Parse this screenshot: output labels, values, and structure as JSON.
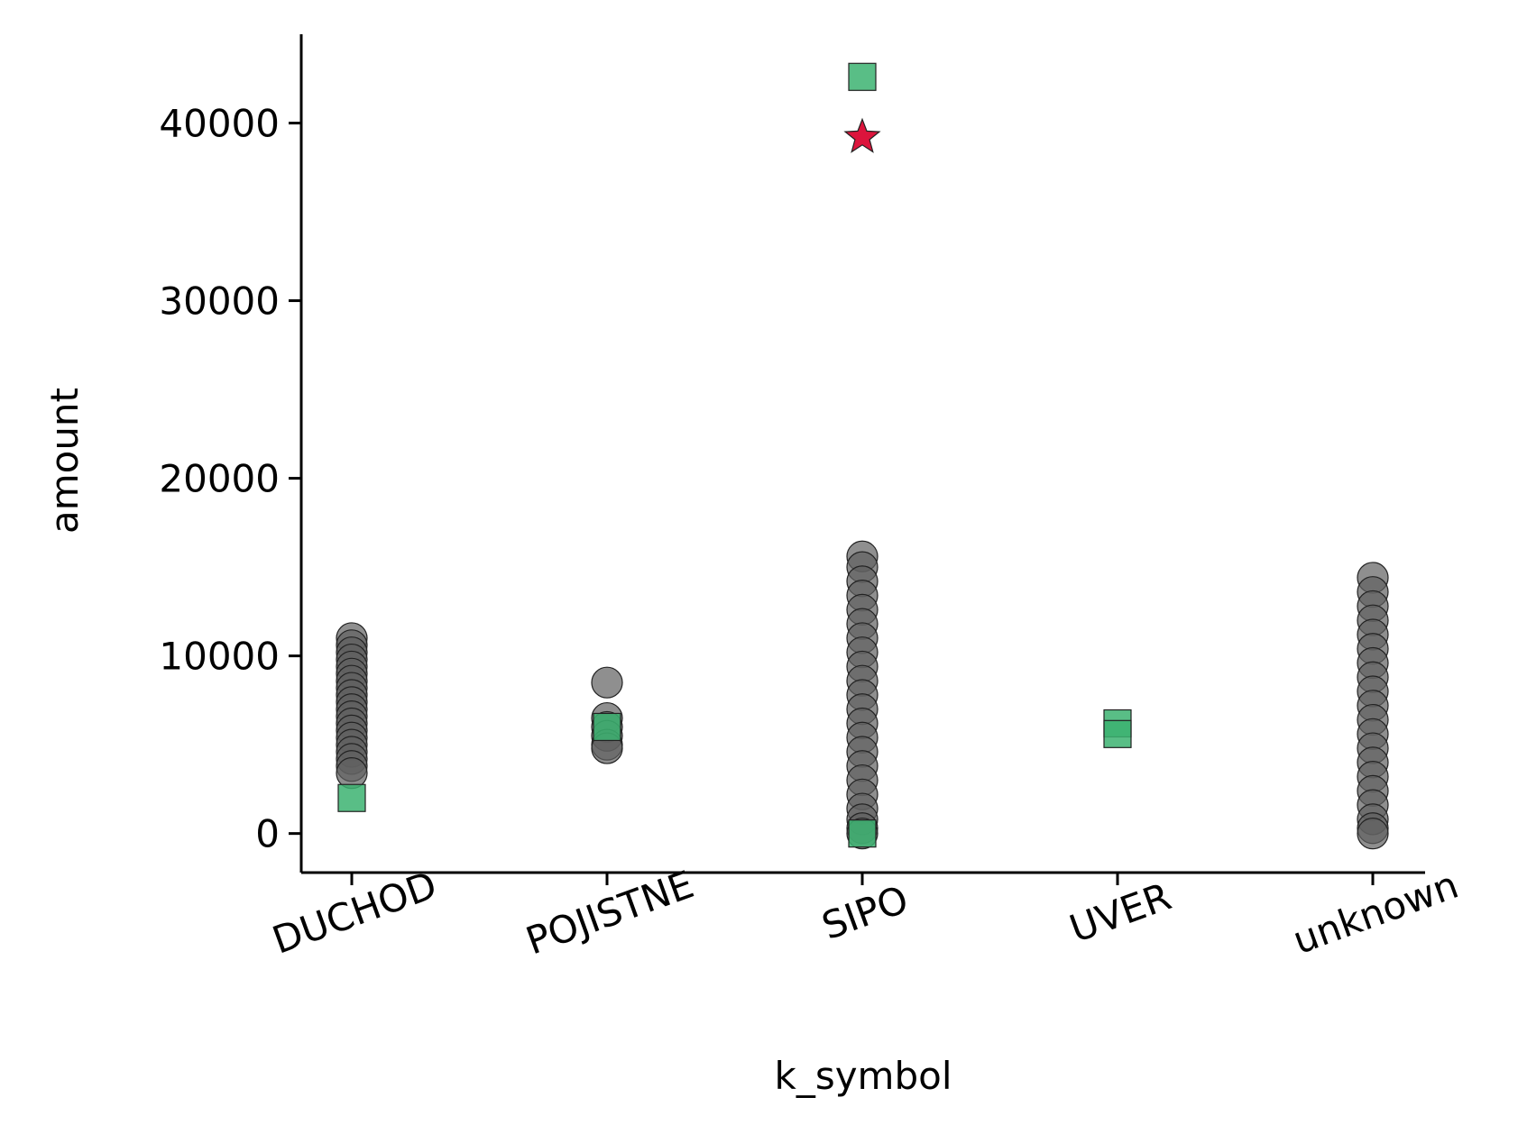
{
  "chart_data": {
    "type": "scatter",
    "title": "",
    "xlabel": "k_symbol",
    "ylabel": "amount",
    "categories": [
      "DUCHOD",
      "POJISTNE",
      "SIPO",
      "UVER",
      "unknown"
    ],
    "ylim": [
      -2200,
      45000
    ],
    "yticks": [
      0,
      10000,
      20000,
      30000,
      40000
    ],
    "grid": false,
    "legend": "none",
    "colors": {
      "circle_fill": "#5f5f5f",
      "square_fill": "#3cb371",
      "star_fill": "#dc143c",
      "edge": "#222222"
    },
    "series": [
      {
        "marker": "circle",
        "points": [
          {
            "x": "DUCHOD",
            "y": 11000
          },
          {
            "x": "DUCHOD",
            "y": 10600
          },
          {
            "x": "DUCHOD",
            "y": 10200
          },
          {
            "x": "DUCHOD",
            "y": 9800
          },
          {
            "x": "DUCHOD",
            "y": 9400
          },
          {
            "x": "DUCHOD",
            "y": 9000
          },
          {
            "x": "DUCHOD",
            "y": 8600
          },
          {
            "x": "DUCHOD",
            "y": 8200
          },
          {
            "x": "DUCHOD",
            "y": 7800
          },
          {
            "x": "DUCHOD",
            "y": 7400
          },
          {
            "x": "DUCHOD",
            "y": 7000
          },
          {
            "x": "DUCHOD",
            "y": 6600
          },
          {
            "x": "DUCHOD",
            "y": 6200
          },
          {
            "x": "DUCHOD",
            "y": 5800
          },
          {
            "x": "DUCHOD",
            "y": 5400
          },
          {
            "x": "DUCHOD",
            "y": 5000
          },
          {
            "x": "DUCHOD",
            "y": 4600
          },
          {
            "x": "DUCHOD",
            "y": 4200
          },
          {
            "x": "DUCHOD",
            "y": 3800
          },
          {
            "x": "DUCHOD",
            "y": 3400
          },
          {
            "x": "POJISTNE",
            "y": 8500
          },
          {
            "x": "POJISTNE",
            "y": 6500
          },
          {
            "x": "POJISTNE",
            "y": 6000
          },
          {
            "x": "POJISTNE",
            "y": 5500
          },
          {
            "x": "POJISTNE",
            "y": 5000
          },
          {
            "x": "POJISTNE",
            "y": 4800
          },
          {
            "x": "SIPO",
            "y": 15600
          },
          {
            "x": "SIPO",
            "y": 15000
          },
          {
            "x": "SIPO",
            "y": 14200
          },
          {
            "x": "SIPO",
            "y": 13400
          },
          {
            "x": "SIPO",
            "y": 12600
          },
          {
            "x": "SIPO",
            "y": 11800
          },
          {
            "x": "SIPO",
            "y": 11000
          },
          {
            "x": "SIPO",
            "y": 10200
          },
          {
            "x": "SIPO",
            "y": 9400
          },
          {
            "x": "SIPO",
            "y": 8600
          },
          {
            "x": "SIPO",
            "y": 7800
          },
          {
            "x": "SIPO",
            "y": 7000
          },
          {
            "x": "SIPO",
            "y": 6200
          },
          {
            "x": "SIPO",
            "y": 5400
          },
          {
            "x": "SIPO",
            "y": 4600
          },
          {
            "x": "SIPO",
            "y": 3800
          },
          {
            "x": "SIPO",
            "y": 3000
          },
          {
            "x": "SIPO",
            "y": 2200
          },
          {
            "x": "SIPO",
            "y": 1400
          },
          {
            "x": "SIPO",
            "y": 800
          },
          {
            "x": "SIPO",
            "y": 300
          },
          {
            "x": "SIPO",
            "y": 0
          },
          {
            "x": "unknown",
            "y": 14400
          },
          {
            "x": "unknown",
            "y": 13600
          },
          {
            "x": "unknown",
            "y": 12800
          },
          {
            "x": "unknown",
            "y": 12000
          },
          {
            "x": "unknown",
            "y": 11200
          },
          {
            "x": "unknown",
            "y": 10400
          },
          {
            "x": "unknown",
            "y": 9600
          },
          {
            "x": "unknown",
            "y": 8800
          },
          {
            "x": "unknown",
            "y": 8000
          },
          {
            "x": "unknown",
            "y": 7200
          },
          {
            "x": "unknown",
            "y": 6400
          },
          {
            "x": "unknown",
            "y": 5600
          },
          {
            "x": "unknown",
            "y": 4800
          },
          {
            "x": "unknown",
            "y": 4000
          },
          {
            "x": "unknown",
            "y": 3200
          },
          {
            "x": "unknown",
            "y": 2400
          },
          {
            "x": "unknown",
            "y": 1600
          },
          {
            "x": "unknown",
            "y": 800
          },
          {
            "x": "unknown",
            "y": 300
          },
          {
            "x": "unknown",
            "y": 0
          }
        ]
      },
      {
        "marker": "square",
        "points": [
          {
            "x": "DUCHOD",
            "y": 2000
          },
          {
            "x": "POJISTNE",
            "y": 6000
          },
          {
            "x": "SIPO",
            "y": 42600
          },
          {
            "x": "SIPO",
            "y": 0
          },
          {
            "x": "UVER",
            "y": 6200
          },
          {
            "x": "UVER",
            "y": 5600
          }
        ]
      },
      {
        "marker": "star",
        "points": [
          {
            "x": "SIPO",
            "y": 39200
          }
        ]
      }
    ]
  }
}
